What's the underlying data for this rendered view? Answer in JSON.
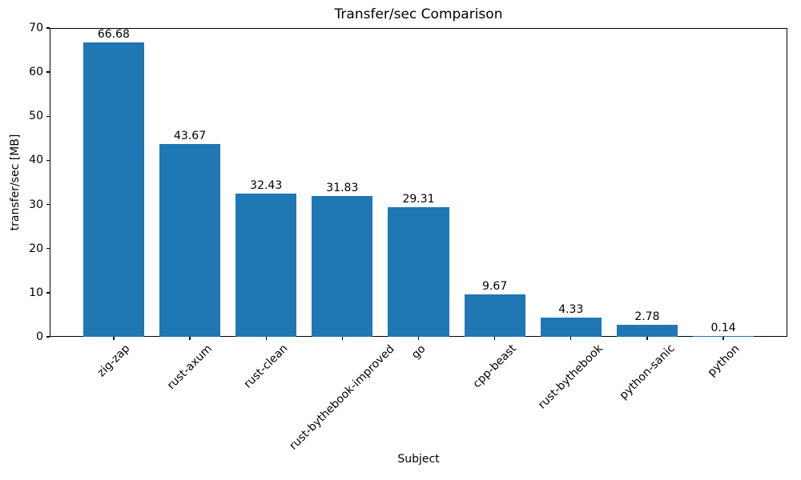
{
  "chart_data": {
    "type": "bar",
    "title": "Transfer/sec Comparison",
    "xlabel": "Subject",
    "ylabel": "transfer/sec [MB]",
    "categories": [
      "zig-zap",
      "rust-axum",
      "rust-clean",
      "rust-bythebook-improved",
      "go",
      "cpp-beast",
      "rust-bythebook",
      "python-sanic",
      "python"
    ],
    "values": [
      66.68,
      43.67,
      32.43,
      31.83,
      29.31,
      9.67,
      4.33,
      2.78,
      0.14
    ],
    "value_labels": [
      "66.68",
      "43.67",
      "32.43",
      "31.83",
      "29.31",
      "9.67",
      "4.33",
      "2.78",
      "0.14"
    ],
    "ylim": [
      0,
      70
    ],
    "yticks": [
      0,
      10,
      20,
      30,
      40,
      50,
      60,
      70
    ],
    "bar_color": "#1f77b4",
    "text_color": "#000000",
    "background": "#ffffff",
    "grid": false,
    "legend_position": "none"
  }
}
